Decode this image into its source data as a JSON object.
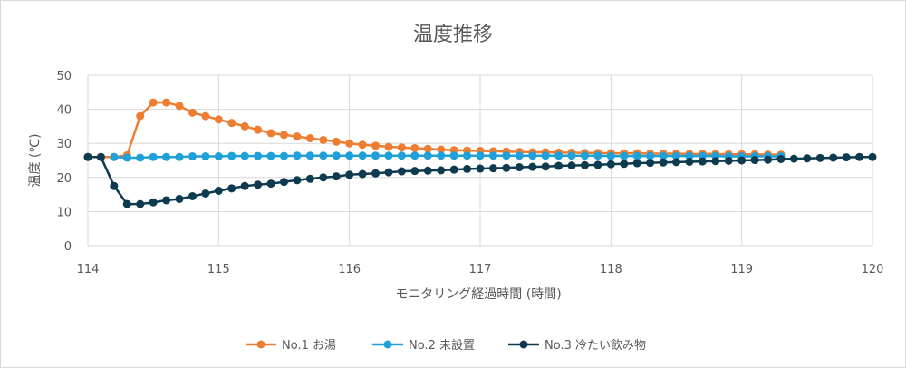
{
  "chart_data": {
    "type": "line",
    "title": "温度推移",
    "xlabel": "モニタリング経過時間 (時間)",
    "ylabel": "温度 (℃)",
    "xlim": [
      114,
      120
    ],
    "ylim": [
      0,
      50
    ],
    "x_ticks": [
      "114",
      "115",
      "116",
      "117",
      "118",
      "119",
      "120"
    ],
    "y_ticks": [
      "0",
      "10",
      "20",
      "30",
      "40",
      "50"
    ],
    "grid": "vertical and horizontal",
    "legend_position": "bottom",
    "series": [
      {
        "name": "No.1 お湯",
        "color": "#ED7D31",
        "x": [
          114.0,
          114.1,
          114.2,
          114.3,
          114.4,
          114.5,
          114.6,
          114.7,
          114.8,
          114.9,
          115.0,
          115.1,
          115.2,
          115.3,
          115.4,
          115.5,
          115.6,
          115.7,
          115.8,
          115.9,
          116.0,
          116.1,
          116.2,
          116.3,
          116.4,
          116.5,
          116.6,
          116.7,
          116.8,
          116.9,
          117.0,
          117.1,
          117.2,
          117.3,
          117.4,
          117.5,
          117.6,
          117.7,
          117.8,
          117.9,
          118.0,
          118.1,
          118.2,
          118.3,
          118.4,
          118.5,
          118.6,
          118.7,
          118.8,
          118.9,
          119.0,
          119.1,
          119.2,
          119.3
        ],
        "y": [
          26,
          26,
          26,
          26.5,
          38,
          42,
          42,
          41,
          39,
          38,
          37,
          36,
          35,
          34,
          33,
          32.5,
          32,
          31.5,
          31,
          30.5,
          30,
          29.6,
          29.3,
          29,
          28.8,
          28.6,
          28.4,
          28.2,
          28,
          27.9,
          27.8,
          27.7,
          27.6,
          27.5,
          27.4,
          27.4,
          27.3,
          27.3,
          27.2,
          27.2,
          27.1,
          27.1,
          27.1,
          27,
          27,
          27,
          26.9,
          26.9,
          26.9,
          26.8,
          26.8,
          26.8,
          26.7,
          26.7
        ]
      },
      {
        "name": "No.2 未設置",
        "color": "#1FA0D8",
        "x": [
          114.2,
          114.3,
          114.4,
          114.5,
          114.6,
          114.7,
          114.8,
          114.9,
          115.0,
          115.1,
          115.2,
          115.3,
          115.4,
          115.5,
          115.6,
          115.7,
          115.8,
          115.9,
          116.0,
          116.1,
          116.2,
          116.3,
          116.4,
          116.5,
          116.6,
          116.7,
          116.8,
          116.9,
          117.0,
          117.1,
          117.2,
          117.3,
          117.4,
          117.5,
          117.6,
          117.7,
          117.8,
          117.9,
          118.0,
          118.1,
          118.2,
          118.3,
          118.4,
          118.5,
          118.6,
          118.7,
          118.8,
          118.9,
          119.0,
          119.1,
          119.2,
          119.3
        ],
        "y": [
          26,
          25.8,
          25.8,
          26,
          26,
          26,
          26.2,
          26.2,
          26.2,
          26.3,
          26.3,
          26.3,
          26.3,
          26.3,
          26.4,
          26.4,
          26.4,
          26.4,
          26.4,
          26.4,
          26.4,
          26.4,
          26.4,
          26.4,
          26.4,
          26.4,
          26.4,
          26.4,
          26.4,
          26.4,
          26.4,
          26.4,
          26.4,
          26.4,
          26.4,
          26.4,
          26.4,
          26.4,
          26.3,
          26.3,
          26.3,
          26.3,
          26.3,
          26.3,
          26.3,
          26.3,
          26.3,
          26.2,
          26.2,
          26.2,
          26.2,
          26.2
        ]
      },
      {
        "name": "No.3 冷たい飲み物",
        "color": "#0D3A4F",
        "x": [
          114.0,
          114.1,
          114.2,
          114.3,
          114.4,
          114.5,
          114.6,
          114.7,
          114.8,
          114.9,
          115.0,
          115.1,
          115.2,
          115.3,
          115.4,
          115.5,
          115.6,
          115.7,
          115.8,
          115.9,
          116.0,
          116.1,
          116.2,
          116.3,
          116.4,
          116.5,
          116.6,
          116.7,
          116.8,
          116.9,
          117.0,
          117.1,
          117.2,
          117.3,
          117.4,
          117.5,
          117.6,
          117.7,
          117.8,
          117.9,
          118.0,
          118.1,
          118.2,
          118.3,
          118.4,
          118.5,
          118.6,
          118.7,
          118.8,
          118.9,
          119.0,
          119.1,
          119.2,
          119.3,
          119.4,
          119.5,
          119.6,
          119.7,
          119.8,
          119.9,
          120.0
        ],
        "y": [
          26,
          26,
          17.5,
          12.2,
          12.2,
          12.7,
          13.3,
          13.7,
          14.5,
          15.3,
          16.1,
          16.8,
          17.5,
          17.9,
          18.2,
          18.7,
          19.2,
          19.6,
          20,
          20.3,
          20.8,
          21,
          21.2,
          21.5,
          21.8,
          21.9,
          22,
          22.1,
          22.3,
          22.5,
          22.6,
          22.7,
          22.8,
          23,
          23.1,
          23.2,
          23.4,
          23.5,
          23.6,
          23.7,
          23.9,
          24,
          24.2,
          24.3,
          24.4,
          24.5,
          24.6,
          24.7,
          24.8,
          24.9,
          25,
          25.1,
          25.2,
          25.4,
          25.5,
          25.6,
          25.7,
          25.8,
          25.9,
          26,
          26
        ]
      }
    ]
  }
}
